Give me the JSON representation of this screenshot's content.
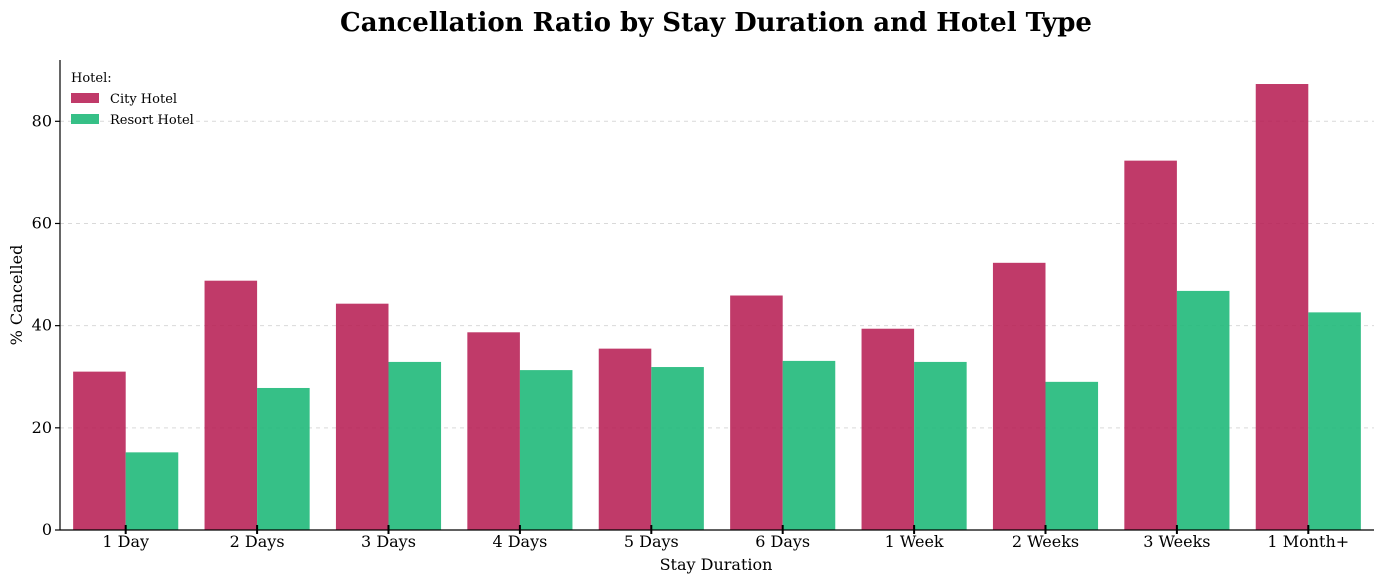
{
  "chart_data": {
    "type": "bar",
    "title": "Cancellation Ratio by Stay Duration and Hotel Type",
    "xlabel": "Stay Duration",
    "ylabel": "% Cancelled",
    "ylim": [
      0,
      92
    ],
    "yticks": [
      0,
      20,
      40,
      60,
      80
    ],
    "grid": true,
    "legend": {
      "title": "Hotel:",
      "placement": "top-left"
    },
    "categories": [
      "1 Day",
      "2 Days",
      "3 Days",
      "4 Days",
      "5 Days",
      "6 Days",
      "1 Week",
      "2 Weeks",
      "3 Weeks",
      "1 Month+"
    ],
    "series": [
      {
        "name": "City Hotel",
        "color": "#b5184f",
        "values": [
          31.0,
          48.8,
          44.3,
          38.7,
          35.5,
          45.9,
          39.4,
          52.3,
          72.3,
          87.3
        ]
      },
      {
        "name": "Resort Hotel",
        "color": "#20b97a",
        "values": [
          15.2,
          27.8,
          32.9,
          31.3,
          31.9,
          33.1,
          32.9,
          29.0,
          46.8,
          42.6
        ]
      }
    ]
  }
}
